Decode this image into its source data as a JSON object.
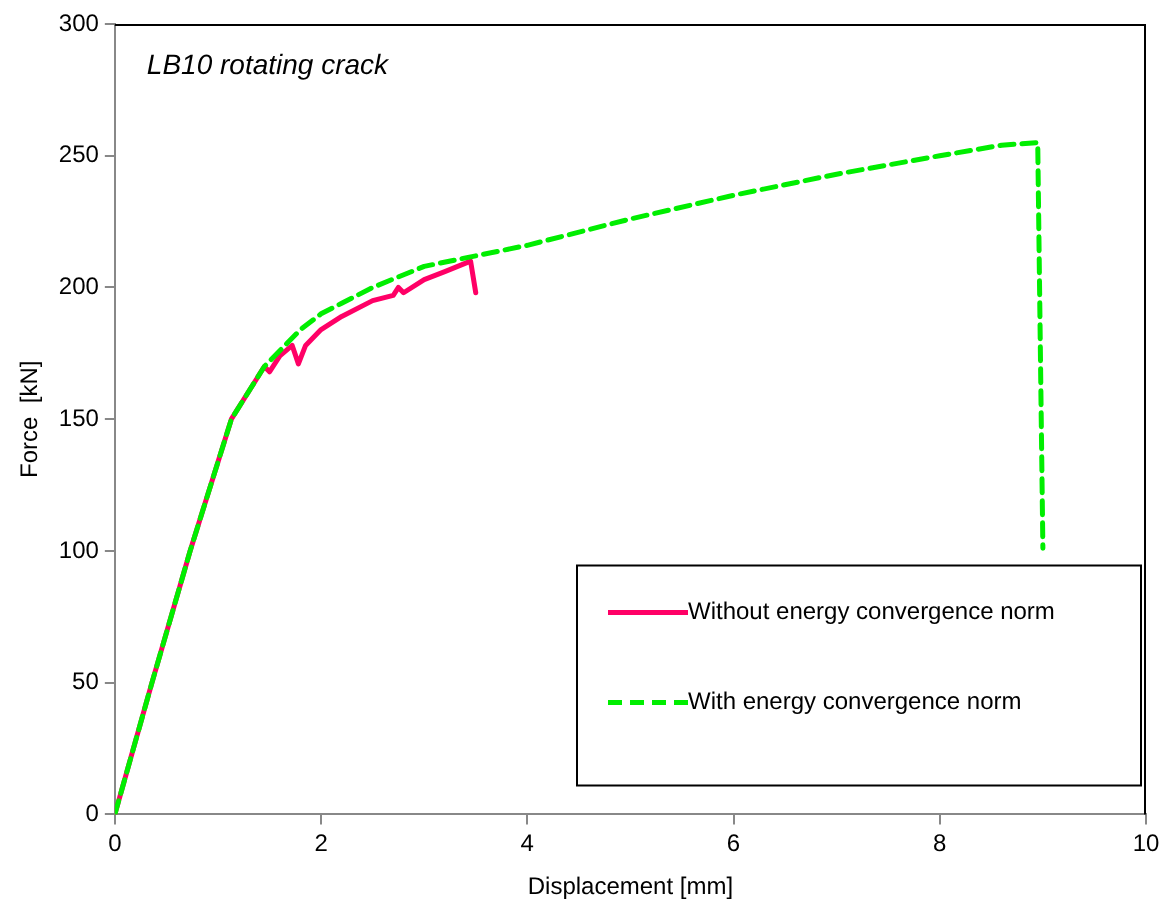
{
  "chart_data": {
    "type": "line",
    "title": "LB10 rotating crack",
    "xlabel": "Displacement [mm]",
    "ylabel": "Force  [kN]",
    "xlim": [
      0,
      10
    ],
    "xticks": [
      0,
      2,
      4,
      6,
      8,
      10
    ],
    "ylim": [
      0,
      300
    ],
    "yticks": [
      0,
      50,
      100,
      150,
      200,
      250,
      300
    ],
    "grid": false,
    "legend": "bottom right",
    "marker": "none",
    "series": [
      {
        "name": "Without energy convergence norm",
        "color": "#ff0066",
        "line_style": "solid",
        "x": [
          0,
          0.36,
          0.73,
          1.13,
          1.45,
          1.5,
          1.6,
          1.72,
          1.78,
          1.85,
          2.0,
          2.2,
          2.5,
          2.7,
          2.75,
          2.8,
          3.0,
          3.2,
          3.45,
          3.5
        ],
        "values": [
          0,
          50,
          100,
          150,
          170,
          168,
          174,
          178,
          171,
          178,
          184,
          189,
          195,
          197,
          200,
          198,
          203,
          206,
          210,
          198
        ]
      },
      {
        "name": "With energy convergence norm",
        "color": "#00ee00",
        "line_style": "dashed",
        "x": [
          0,
          0.36,
          0.73,
          1.13,
          1.45,
          1.8,
          2.0,
          2.2,
          2.5,
          3.0,
          3.5,
          4.0,
          5.0,
          6.0,
          7.0,
          8.0,
          8.6,
          8.95,
          9.0
        ],
        "values": [
          0,
          50,
          100,
          150,
          170,
          184,
          190,
          194,
          200,
          208,
          212,
          216,
          226,
          235,
          243,
          250,
          254,
          255,
          101
        ]
      }
    ]
  }
}
